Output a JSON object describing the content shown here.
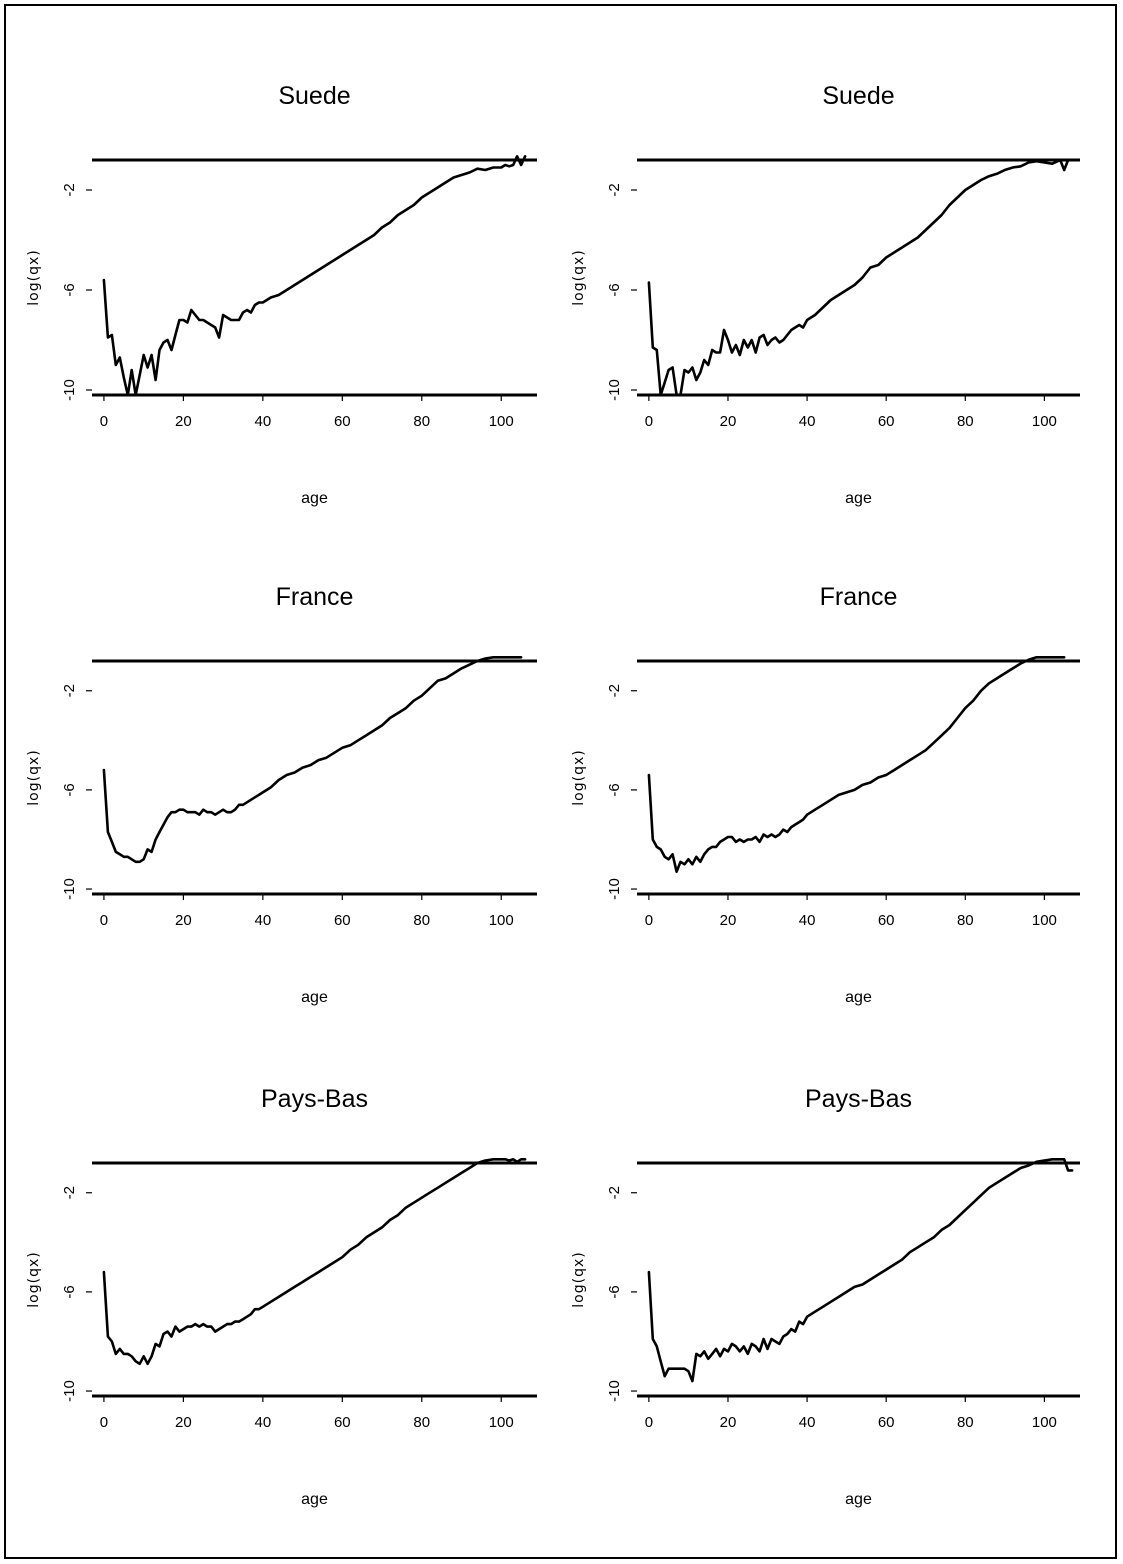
{
  "chart_data": [
    {
      "type": "line",
      "title": "Suede",
      "xlabel": "age",
      "ylabel": "log(qx)",
      "xlim": [
        -3,
        109
      ],
      "ylim": [
        -10.2,
        -0.8
      ],
      "xticks": [
        0,
        20,
        40,
        60,
        80,
        100
      ],
      "yticks": [
        -2,
        -6,
        -10
      ],
      "grid": false,
      "series": [
        {
          "x": [
            0,
            1,
            2,
            3,
            4,
            5,
            6,
            7,
            8,
            9,
            10,
            11,
            12,
            13,
            14,
            15,
            16,
            17,
            18,
            19,
            20,
            21,
            22,
            23,
            24,
            25,
            26,
            27,
            28,
            29,
            30,
            31,
            32,
            33,
            34,
            35,
            36,
            37,
            38,
            39,
            40,
            42,
            44,
            46,
            48,
            50,
            52,
            54,
            56,
            58,
            60,
            62,
            64,
            66,
            68,
            70,
            72,
            74,
            76,
            78,
            80,
            82,
            84,
            86,
            88,
            90,
            92,
            94,
            96,
            98,
            100,
            101,
            102,
            103,
            104,
            105,
            106
          ],
          "y": [
            -5.6,
            -7.9,
            -7.8,
            -9.0,
            -8.7,
            -9.5,
            -10.2,
            -9.2,
            -10.2,
            -9.4,
            -8.6,
            -9.1,
            -8.6,
            -9.6,
            -8.4,
            -8.1,
            -8.0,
            -8.4,
            -7.8,
            -7.2,
            -7.2,
            -7.3,
            -6.8,
            -7.0,
            -7.2,
            -7.2,
            -7.3,
            -7.4,
            -7.5,
            -7.9,
            -7.0,
            -7.1,
            -7.2,
            -7.2,
            -7.2,
            -6.9,
            -6.8,
            -6.9,
            -6.6,
            -6.5,
            -6.5,
            -6.3,
            -6.2,
            -6.0,
            -5.8,
            -5.6,
            -5.4,
            -5.2,
            -5.0,
            -4.8,
            -4.6,
            -4.4,
            -4.2,
            -4.0,
            -3.8,
            -3.5,
            -3.3,
            -3.0,
            -2.8,
            -2.6,
            -2.3,
            -2.1,
            -1.9,
            -1.7,
            -1.5,
            -1.4,
            -1.3,
            -1.15,
            -1.2,
            -1.1,
            -1.1,
            -1.0,
            -1.05,
            -1.0,
            -0.6,
            -1.0,
            -0.6
          ]
        }
      ]
    },
    {
      "type": "line",
      "title": "Suede",
      "xlabel": "age",
      "ylabel": "log(qx)",
      "xlim": [
        -3,
        109
      ],
      "ylim": [
        -10.2,
        -0.8
      ],
      "xticks": [
        0,
        20,
        40,
        60,
        80,
        100
      ],
      "yticks": [
        -2,
        -6,
        -10
      ],
      "grid": false,
      "series": [
        {
          "x": [
            0,
            1,
            2,
            3,
            4,
            5,
            6,
            7,
            8,
            9,
            10,
            11,
            12,
            13,
            14,
            15,
            16,
            17,
            18,
            19,
            20,
            21,
            22,
            23,
            24,
            25,
            26,
            27,
            28,
            29,
            30,
            31,
            32,
            33,
            34,
            35,
            36,
            37,
            38,
            39,
            40,
            42,
            44,
            46,
            48,
            50,
            52,
            54,
            56,
            58,
            60,
            62,
            64,
            66,
            68,
            70,
            72,
            74,
            76,
            78,
            80,
            82,
            84,
            86,
            88,
            90,
            92,
            94,
            96,
            98,
            100,
            102,
            104,
            105,
            106
          ],
          "y": [
            -5.7,
            -8.3,
            -8.4,
            -10.2,
            -9.7,
            -9.2,
            -9.1,
            -10.2,
            -10.2,
            -9.2,
            -9.3,
            -9.1,
            -9.6,
            -9.3,
            -8.8,
            -9.0,
            -8.4,
            -8.5,
            -8.5,
            -7.6,
            -8.0,
            -8.5,
            -8.2,
            -8.6,
            -8.0,
            -8.3,
            -8.0,
            -8.5,
            -7.9,
            -7.8,
            -8.2,
            -8.0,
            -7.9,
            -8.1,
            -8.0,
            -7.8,
            -7.6,
            -7.5,
            -7.4,
            -7.5,
            -7.2,
            -7.0,
            -6.7,
            -6.4,
            -6.2,
            -6.0,
            -5.8,
            -5.5,
            -5.1,
            -5.0,
            -4.7,
            -4.5,
            -4.3,
            -4.1,
            -3.9,
            -3.6,
            -3.3,
            -3.0,
            -2.6,
            -2.3,
            -2.0,
            -1.8,
            -1.6,
            -1.45,
            -1.35,
            -1.2,
            -1.1,
            -1.05,
            -0.9,
            -0.85,
            -0.9,
            -0.95,
            -0.8,
            -1.2,
            -0.8
          ]
        }
      ]
    },
    {
      "type": "line",
      "title": "France",
      "xlabel": "age",
      "ylabel": "log(qx)",
      "xlim": [
        -3,
        109
      ],
      "ylim": [
        -10.2,
        -0.8
      ],
      "xticks": [
        0,
        20,
        40,
        60,
        80,
        100
      ],
      "yticks": [
        -2,
        -6,
        -10
      ],
      "grid": false,
      "series": [
        {
          "x": [
            0,
            1,
            2,
            3,
            4,
            5,
            6,
            7,
            8,
            9,
            10,
            11,
            12,
            13,
            14,
            15,
            16,
            17,
            18,
            19,
            20,
            21,
            22,
            23,
            24,
            25,
            26,
            27,
            28,
            29,
            30,
            31,
            32,
            33,
            34,
            35,
            36,
            37,
            38,
            39,
            40,
            42,
            44,
            46,
            48,
            50,
            52,
            54,
            56,
            58,
            60,
            62,
            64,
            66,
            68,
            70,
            72,
            74,
            76,
            78,
            80,
            82,
            84,
            86,
            88,
            90,
            92,
            94,
            96,
            98,
            100,
            102,
            104,
            105
          ],
          "y": [
            -5.2,
            -7.7,
            -8.1,
            -8.5,
            -8.6,
            -8.7,
            -8.7,
            -8.8,
            -8.9,
            -8.9,
            -8.8,
            -8.4,
            -8.5,
            -8.0,
            -7.7,
            -7.4,
            -7.1,
            -6.9,
            -6.9,
            -6.8,
            -6.8,
            -6.9,
            -6.9,
            -6.9,
            -7.0,
            -6.8,
            -6.9,
            -6.9,
            -7.0,
            -6.9,
            -6.8,
            -6.9,
            -6.9,
            -6.8,
            -6.6,
            -6.6,
            -6.5,
            -6.4,
            -6.3,
            -6.2,
            -6.1,
            -5.9,
            -5.6,
            -5.4,
            -5.3,
            -5.1,
            -5.0,
            -4.8,
            -4.7,
            -4.5,
            -4.3,
            -4.2,
            -4.0,
            -3.8,
            -3.6,
            -3.4,
            -3.1,
            -2.9,
            -2.7,
            -2.4,
            -2.2,
            -1.9,
            -1.6,
            -1.5,
            -1.3,
            -1.1,
            -0.95,
            -0.8,
            -0.7,
            -0.6,
            -0.5,
            -0.4,
            -0.3,
            -0.2
          ]
        }
      ]
    },
    {
      "type": "line",
      "title": "France",
      "xlabel": "age",
      "ylabel": "log(qx)",
      "xlim": [
        -3,
        109
      ],
      "ylim": [
        -10.2,
        -0.8
      ],
      "xticks": [
        0,
        20,
        40,
        60,
        80,
        100
      ],
      "yticks": [
        -2,
        -6,
        -10
      ],
      "grid": false,
      "series": [
        {
          "x": [
            0,
            1,
            2,
            3,
            4,
            5,
            6,
            7,
            8,
            9,
            10,
            11,
            12,
            13,
            14,
            15,
            16,
            17,
            18,
            19,
            20,
            21,
            22,
            23,
            24,
            25,
            26,
            27,
            28,
            29,
            30,
            31,
            32,
            33,
            34,
            35,
            36,
            37,
            38,
            39,
            40,
            42,
            44,
            46,
            48,
            50,
            52,
            54,
            56,
            58,
            60,
            62,
            64,
            66,
            68,
            70,
            72,
            74,
            76,
            78,
            80,
            82,
            84,
            86,
            88,
            90,
            92,
            94,
            96,
            98,
            100,
            102,
            104,
            105
          ],
          "y": [
            -5.4,
            -8.0,
            -8.3,
            -8.4,
            -8.7,
            -8.8,
            -8.6,
            -9.3,
            -8.9,
            -9.0,
            -8.8,
            -9.0,
            -8.7,
            -8.9,
            -8.6,
            -8.4,
            -8.3,
            -8.3,
            -8.1,
            -8.0,
            -7.9,
            -7.9,
            -8.1,
            -8.0,
            -8.1,
            -8.0,
            -8.0,
            -7.9,
            -8.1,
            -7.8,
            -7.9,
            -7.8,
            -7.9,
            -7.8,
            -7.6,
            -7.7,
            -7.5,
            -7.4,
            -7.3,
            -7.2,
            -7.0,
            -6.8,
            -6.6,
            -6.4,
            -6.2,
            -6.1,
            -6.0,
            -5.8,
            -5.7,
            -5.5,
            -5.4,
            -5.2,
            -5.0,
            -4.8,
            -4.6,
            -4.4,
            -4.1,
            -3.8,
            -3.5,
            -3.1,
            -2.7,
            -2.4,
            -2.0,
            -1.7,
            -1.5,
            -1.3,
            -1.1,
            -0.9,
            -0.75,
            -0.6,
            -0.5,
            -0.4,
            -0.35,
            0.0
          ]
        }
      ]
    },
    {
      "type": "line",
      "title": "Pays-Bas",
      "xlabel": "age",
      "ylabel": "log(qx)",
      "xlim": [
        -3,
        109
      ],
      "ylim": [
        -10.2,
        -0.8
      ],
      "xticks": [
        0,
        20,
        40,
        60,
        80,
        100
      ],
      "yticks": [
        -2,
        -6,
        -10
      ],
      "grid": false,
      "series": [
        {
          "x": [
            0,
            1,
            2,
            3,
            4,
            5,
            6,
            7,
            8,
            9,
            10,
            11,
            12,
            13,
            14,
            15,
            16,
            17,
            18,
            19,
            20,
            21,
            22,
            23,
            24,
            25,
            26,
            27,
            28,
            29,
            30,
            31,
            32,
            33,
            34,
            35,
            36,
            37,
            38,
            39,
            40,
            42,
            44,
            46,
            48,
            50,
            52,
            54,
            56,
            58,
            60,
            62,
            64,
            66,
            68,
            70,
            72,
            74,
            76,
            78,
            80,
            82,
            84,
            86,
            88,
            90,
            92,
            94,
            96,
            98,
            100,
            101,
            102,
            103,
            104,
            105,
            106
          ],
          "y": [
            -5.2,
            -7.8,
            -8.0,
            -8.5,
            -8.3,
            -8.5,
            -8.5,
            -8.6,
            -8.8,
            -8.9,
            -8.6,
            -8.9,
            -8.6,
            -8.1,
            -8.2,
            -7.7,
            -7.6,
            -7.8,
            -7.4,
            -7.6,
            -7.5,
            -7.4,
            -7.4,
            -7.3,
            -7.4,
            -7.3,
            -7.4,
            -7.4,
            -7.6,
            -7.5,
            -7.4,
            -7.3,
            -7.3,
            -7.2,
            -7.2,
            -7.1,
            -7.0,
            -6.9,
            -6.7,
            -6.7,
            -6.6,
            -6.4,
            -6.2,
            -6.0,
            -5.8,
            -5.6,
            -5.4,
            -5.2,
            -5.0,
            -4.8,
            -4.6,
            -4.3,
            -4.1,
            -3.8,
            -3.6,
            -3.4,
            -3.1,
            -2.9,
            -2.6,
            -2.4,
            -2.2,
            -2.0,
            -1.8,
            -1.6,
            -1.4,
            -1.2,
            -1.0,
            -0.8,
            -0.7,
            -0.6,
            -0.55,
            -0.3,
            -0.7,
            -0.35,
            -0.75,
            -0.45,
            -0.25
          ]
        }
      ]
    },
    {
      "type": "line",
      "title": "Pays-Bas",
      "xlabel": "age",
      "ylabel": "log(qx)",
      "xlim": [
        -3,
        109
      ],
      "ylim": [
        -10.2,
        -0.8
      ],
      "xticks": [
        0,
        20,
        40,
        60,
        80,
        100
      ],
      "yticks": [
        -2,
        -6,
        -10
      ],
      "grid": false,
      "series": [
        {
          "x": [
            0,
            1,
            2,
            3,
            4,
            5,
            6,
            7,
            8,
            9,
            10,
            11,
            12,
            13,
            14,
            15,
            16,
            17,
            18,
            19,
            20,
            21,
            22,
            23,
            24,
            25,
            26,
            27,
            28,
            29,
            30,
            31,
            32,
            33,
            34,
            35,
            36,
            37,
            38,
            39,
            40,
            42,
            44,
            46,
            48,
            50,
            52,
            54,
            56,
            58,
            60,
            62,
            64,
            66,
            68,
            70,
            72,
            74,
            76,
            78,
            80,
            82,
            84,
            86,
            88,
            90,
            92,
            94,
            96,
            98,
            100,
            102,
            104,
            105,
            106,
            107
          ],
          "y": [
            -5.2,
            -7.9,
            -8.2,
            -8.8,
            -9.4,
            -9.1,
            -9.1,
            -9.1,
            -9.1,
            -9.1,
            -9.2,
            -9.6,
            -8.5,
            -8.6,
            -8.4,
            -8.7,
            -8.5,
            -8.3,
            -8.6,
            -8.3,
            -8.4,
            -8.1,
            -8.2,
            -8.4,
            -8.2,
            -8.5,
            -8.1,
            -8.2,
            -8.4,
            -7.9,
            -8.3,
            -7.9,
            -8.0,
            -8.1,
            -7.8,
            -7.7,
            -7.5,
            -7.6,
            -7.2,
            -7.3,
            -7.0,
            -6.8,
            -6.6,
            -6.4,
            -6.2,
            -6.0,
            -5.8,
            -5.7,
            -5.5,
            -5.3,
            -5.1,
            -4.9,
            -4.7,
            -4.4,
            -4.2,
            -4.0,
            -3.8,
            -3.5,
            -3.3,
            -3.0,
            -2.7,
            -2.4,
            -2.1,
            -1.8,
            -1.6,
            -1.4,
            -1.2,
            -1.0,
            -0.9,
            -0.75,
            -0.7,
            -0.5,
            -0.45,
            -0.3,
            -1.1,
            -1.1
          ]
        }
      ]
    }
  ]
}
